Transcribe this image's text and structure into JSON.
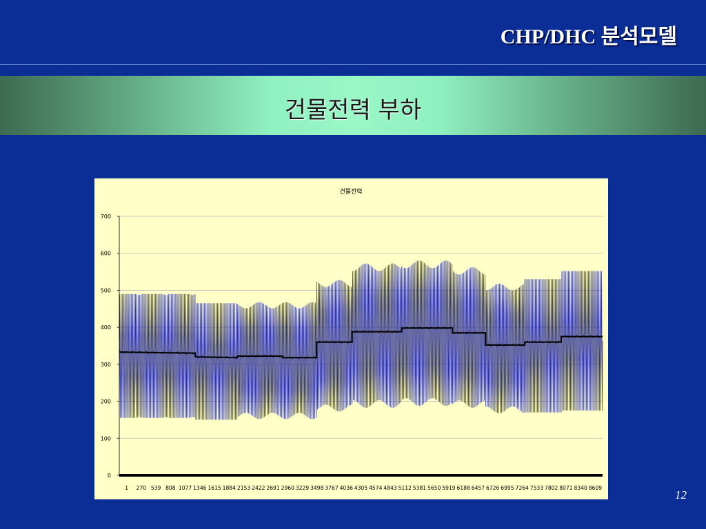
{
  "slide": {
    "header_title": "CHP/DHC 분석모델",
    "banner_title": "건물전력 부하",
    "page_number": "12"
  },
  "chart_data": {
    "type": "line",
    "title": "건물전력",
    "xlabel": "",
    "ylabel": "",
    "ylim": [
      0,
      700
    ],
    "yticks": [
      0,
      100,
      200,
      300,
      400,
      500,
      600,
      700
    ],
    "x_tick_labels": [
      "1",
      "270",
      "539",
      "808",
      "1077",
      "1346",
      "1615",
      "1884",
      "2153",
      "2422",
      "2691",
      "2960",
      "3229",
      "3498",
      "3767",
      "4036",
      "4305",
      "4574",
      "4843",
      "5112",
      "5381",
      "5650",
      "5919",
      "6188",
      "6457",
      "6726",
      "6995",
      "7264",
      "7533",
      "7802",
      "8071",
      "8340",
      "8609"
    ],
    "xlim": [
      1,
      8760
    ],
    "grid": true,
    "legend": "none",
    "colors": {
      "load": "#2b2f96",
      "mean": "#000000",
      "zero": "#000000"
    },
    "series": [
      {
        "name": "",
        "style": "oscillating",
        "segments": [
          {
            "x": [
              1,
              1380
            ],
            "min": 155,
            "max": 490,
            "period": 24
          },
          {
            "x": [
              1380,
              2140
            ],
            "min": 150,
            "max": 465,
            "period": 24
          },
          {
            "x": [
              2140,
              3580
            ],
            "min": 150,
            "max": 470,
            "period": 24
          },
          {
            "x": [
              3580,
              4220
            ],
            "min": 170,
            "max": 530,
            "period": 24
          },
          {
            "x": [
              4220,
              5120
            ],
            "min": 180,
            "max": 575,
            "period": 24
          },
          {
            "x": [
              5120,
              6040
            ],
            "min": 185,
            "max": 583,
            "period": 24
          },
          {
            "x": [
              6040,
              6640
            ],
            "min": 180,
            "max": 565,
            "period": 24
          },
          {
            "x": [
              6640,
              7350
            ],
            "min": 165,
            "max": 520,
            "period": 24
          },
          {
            "x": [
              7350,
              8010
            ],
            "min": 170,
            "max": 530,
            "period": 24
          },
          {
            "x": [
              8010,
              8760
            ],
            "min": 175,
            "max": 552,
            "period": 24
          }
        ]
      },
      {
        "name": "",
        "style": "step",
        "x": [
          1,
          1380,
          1380,
          2140,
          2140,
          2960,
          2960,
          3580,
          3580,
          4220,
          4220,
          5120,
          5120,
          6040,
          6040,
          6640,
          6640,
          7350,
          7350,
          8010,
          8010,
          8760
        ],
        "y": [
          333,
          330,
          320,
          318,
          322,
          322,
          318,
          318,
          360,
          360,
          388,
          388,
          398,
          398,
          385,
          385,
          352,
          352,
          360,
          360,
          375,
          375
        ]
      },
      {
        "name": "",
        "style": "line",
        "x": [
          1,
          8760
        ],
        "y": [
          0,
          0
        ]
      }
    ]
  }
}
